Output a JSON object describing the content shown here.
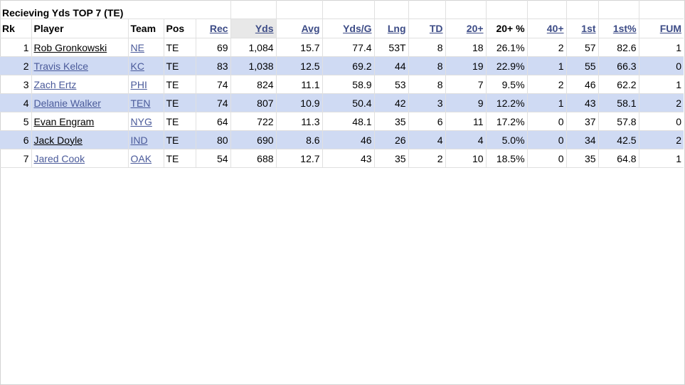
{
  "title": "Recieving Yds TOP 7 (TE)",
  "headers": {
    "rk": "Rk",
    "player": "Player",
    "team": "Team",
    "pos": "Pos",
    "rec": "Rec",
    "yds": "Yds",
    "avg": "Avg",
    "ydsg": "Yds/G",
    "lng": "Lng",
    "td": "TD",
    "p20": "20+",
    "p20pct": "20+ %",
    "p40": "40+",
    "first": "1st",
    "firstpct": "1st%",
    "fum": "FUM"
  },
  "rows": [
    {
      "rk": "1",
      "player": "Rob Gronkowski",
      "team": "NE",
      "pos": "TE",
      "rec": "69",
      "yds": "1,084",
      "avg": "15.7",
      "ydsg": "77.4",
      "lng": "53T",
      "td": "8",
      "p20": "18",
      "p20pct": "26.1%",
      "p40": "2",
      "first": "57",
      "firstpct": "82.6",
      "fum": "1"
    },
    {
      "rk": "2",
      "player": "Travis Kelce",
      "team": "KC",
      "pos": "TE",
      "rec": "83",
      "yds": "1,038",
      "avg": "12.5",
      "ydsg": "69.2",
      "lng": "44",
      "td": "8",
      "p20": "19",
      "p20pct": "22.9%",
      "p40": "1",
      "first": "55",
      "firstpct": "66.3",
      "fum": "0"
    },
    {
      "rk": "3",
      "player": "Zach Ertz",
      "team": "PHI",
      "pos": "TE",
      "rec": "74",
      "yds": "824",
      "avg": "11.1",
      "ydsg": "58.9",
      "lng": "53",
      "td": "8",
      "p20": "7",
      "p20pct": "9.5%",
      "p40": "2",
      "first": "46",
      "firstpct": "62.2",
      "fum": "1"
    },
    {
      "rk": "4",
      "player": "Delanie Walker",
      "team": "TEN",
      "pos": "TE",
      "rec": "74",
      "yds": "807",
      "avg": "10.9",
      "ydsg": "50.4",
      "lng": "42",
      "td": "3",
      "p20": "9",
      "p20pct": "12.2%",
      "p40": "1",
      "first": "43",
      "firstpct": "58.1",
      "fum": "2"
    },
    {
      "rk": "5",
      "player": "Evan Engram",
      "team": "NYG",
      "pos": "TE",
      "rec": "64",
      "yds": "722",
      "avg": "11.3",
      "ydsg": "48.1",
      "lng": "35",
      "td": "6",
      "p20": "11",
      "p20pct": "17.2%",
      "p40": "0",
      "first": "37",
      "firstpct": "57.8",
      "fum": "0"
    },
    {
      "rk": "6",
      "player": "Jack Doyle",
      "team": "IND",
      "pos": "TE",
      "rec": "80",
      "yds": "690",
      "avg": "8.6",
      "ydsg": "46",
      "lng": "26",
      "td": "4",
      "p20": "4",
      "p20pct": "5.0%",
      "p40": "0",
      "first": "34",
      "firstpct": "42.5",
      "fum": "2"
    },
    {
      "rk": "7",
      "player": "Jared Cook",
      "team": "OAK",
      "pos": "TE",
      "rec": "54",
      "yds": "688",
      "avg": "12.7",
      "ydsg": "43",
      "lng": "35",
      "td": "2",
      "p20": "10",
      "p20pct": "18.5%",
      "p40": "0",
      "first": "35",
      "firstpct": "64.8",
      "fum": "1"
    }
  ],
  "colors": {
    "alt_row": "#cfdaf3",
    "link": "#4a5a9a",
    "sorted_header": "#e8e8e8",
    "grid": "#e0e0e0"
  }
}
